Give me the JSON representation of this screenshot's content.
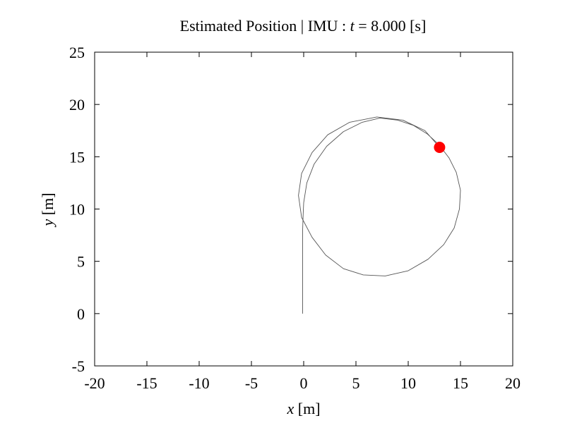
{
  "chart_data": {
    "type": "line",
    "title": {
      "prefix": "Estimated Position | IMU : ",
      "var": "t",
      "suffix": " = 8.000 [s]"
    },
    "xlabel": {
      "var": "x",
      "unit": " [m]"
    },
    "ylabel": {
      "var": "y",
      "unit": " [m]"
    },
    "xlim": [
      -20,
      20
    ],
    "ylim": [
      -5,
      25
    ],
    "xticks": [
      "-20",
      "-15",
      "-10",
      "-5",
      "0",
      "5",
      "10",
      "15",
      "20"
    ],
    "yticks": [
      "-5",
      "0",
      "5",
      "10",
      "15",
      "20",
      "25"
    ],
    "grid": false,
    "legend": "none",
    "series": [
      {
        "color": "#555555",
        "x": [
          -0.1,
          -0.1,
          -0.1,
          -0.1,
          -0.1,
          -0.05,
          0.0,
          0.3,
          1.0,
          2.2,
          3.8,
          5.6,
          7.3,
          9.0,
          10.5,
          11.8,
          12.9,
          13.9,
          14.6,
          15.0,
          14.9,
          14.4,
          13.4,
          11.9,
          10.0,
          7.8,
          5.7,
          3.8,
          2.1,
          0.8,
          -0.2,
          -0.5,
          -0.2,
          0.8,
          2.3,
          4.4,
          7.0,
          9.5,
          11.6,
          13.0
        ],
        "y": [
          0.0,
          2.0,
          4.0,
          6.0,
          8.0,
          9.5,
          10.6,
          12.5,
          14.3,
          16.0,
          17.4,
          18.3,
          18.7,
          18.5,
          18.0,
          17.2,
          16.2,
          14.9,
          13.5,
          11.8,
          10.0,
          8.2,
          6.6,
          5.2,
          4.1,
          3.6,
          3.7,
          4.3,
          5.6,
          7.3,
          9.2,
          11.3,
          13.4,
          15.4,
          17.1,
          18.3,
          18.8,
          18.5,
          17.5,
          15.9
        ]
      }
    ],
    "marker": {
      "x": 13.0,
      "y": 15.9,
      "color": "#ff0000"
    }
  }
}
